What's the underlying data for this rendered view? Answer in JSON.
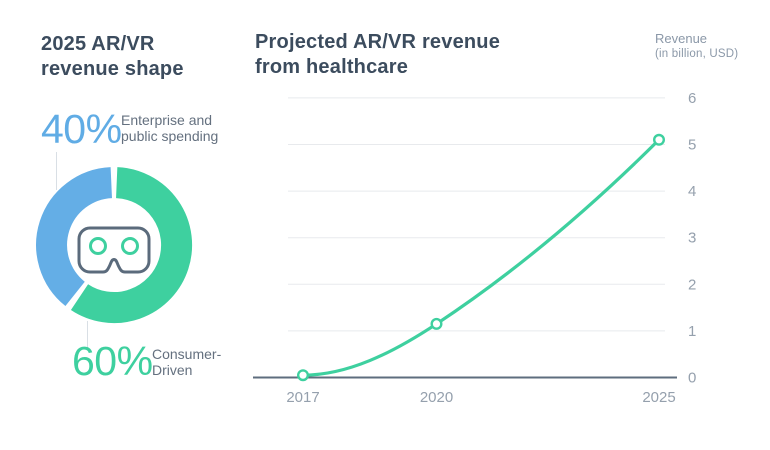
{
  "left_panel": {
    "title_line1": "2025 AR/VR",
    "title_line2": "revenue shape",
    "stat_top": {
      "value": "40%",
      "label_line1": "Enterprise and",
      "label_line2": "public spending"
    },
    "stat_bottom": {
      "value": "60%",
      "label_line1": "Consumer-",
      "label_line2": "Driven"
    }
  },
  "right_panel": {
    "title_line1": "Projected AR/VR revenue",
    "title_line2": "from healthcare",
    "axis_title_line1": "Revenue",
    "axis_title_line2": "(in billion, USD)"
  },
  "colors": {
    "accent_green": "#3ed09f",
    "accent_blue": "#64aee6",
    "title_text": "#3c4c5e",
    "muted_text": "#64707f",
    "axis_text": "#95a0ad",
    "grid_line": "#e8eaed",
    "axis_line": "#5e6d7e",
    "icon_stroke": "#5b6b7c",
    "marker_fill": "#ffffff"
  },
  "chart_data": [
    {
      "type": "pie",
      "subtype": "donut",
      "title": "2025 AR/VR revenue shape",
      "categories": [
        "Consumer-Driven",
        "Enterprise and public spending"
      ],
      "values": [
        60,
        40
      ],
      "colors": [
        "#3ed09f",
        "#64aee6"
      ],
      "center_icon": "vr-headset-icon",
      "start_angle_deg_from_top": 0,
      "direction": "clockwise"
    },
    {
      "type": "line",
      "title": "Projected AR/VR revenue from healthcare",
      "ylabel": "Revenue (in billion, USD)",
      "x": [
        2017,
        2020,
        2025
      ],
      "values": [
        0.05,
        1.15,
        5.1
      ],
      "yticks": [
        0,
        1,
        2,
        3,
        4,
        5,
        6
      ],
      "ylim": [
        0,
        6
      ],
      "grid": true,
      "legend": "none",
      "line_color": "#3ed09f",
      "marker": "open-circle",
      "smooth": true
    }
  ]
}
